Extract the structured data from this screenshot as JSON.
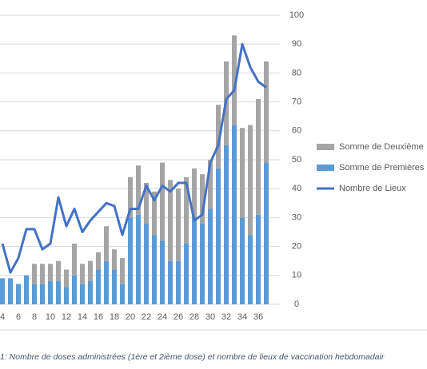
{
  "chart_data": {
    "type": "bar-line",
    "caption": "1: Nombre de doses administrées (1ère et 2ième dose) et nombre de lieux de vaccination hebdomadair",
    "x": [
      4,
      5,
      6,
      7,
      8,
      9,
      10,
      11,
      12,
      13,
      14,
      15,
      16,
      17,
      18,
      19,
      20,
      21,
      22,
      23,
      24,
      25,
      26,
      27,
      28,
      29,
      30,
      31,
      32,
      33,
      34,
      35,
      36,
      37
    ],
    "xlim": [
      3.7,
      38.7
    ],
    "xticks": [
      4,
      6,
      8,
      10,
      12,
      14,
      16,
      18,
      20,
      22,
      24,
      26,
      28,
      30,
      32,
      34,
      36
    ],
    "ylim": [
      0,
      100
    ],
    "yticks": [
      0,
      10,
      20,
      30,
      40,
      50,
      60,
      70,
      80,
      90,
      100
    ],
    "grid": true,
    "series": [
      {
        "name": "Somme de Premières",
        "color": "#5b9bd5",
        "kind": "bar",
        "values": [
          9,
          9,
          7,
          10,
          7,
          7,
          8,
          8,
          6,
          10,
          7,
          8,
          12,
          15,
          12,
          7,
          30,
          31,
          28,
          24,
          22,
          15,
          15,
          21,
          30,
          28,
          33,
          47,
          55,
          62,
          30,
          24,
          31,
          49
        ]
      },
      {
        "name": "Somme de Deuxième",
        "color": "#a5a5a5",
        "kind": "bar",
        "values": [
          0,
          0,
          0,
          0,
          7,
          7,
          6,
          7,
          6,
          11,
          7,
          7,
          6,
          12,
          7,
          9,
          14,
          17,
          14,
          15,
          27,
          28,
          25,
          23,
          17,
          17,
          17,
          22,
          29,
          31,
          31,
          38,
          40,
          35
        ]
      },
      {
        "name": "Nombre de Lieux",
        "color": "#4472c4",
        "kind": "line",
        "values": [
          21,
          11,
          16,
          26,
          26,
          19,
          21,
          37,
          27,
          33,
          25,
          29,
          32,
          35,
          34,
          24,
          33,
          33,
          41,
          36,
          41,
          39,
          42,
          42,
          29,
          31,
          49,
          55,
          71,
          74,
          90,
          82,
          77,
          75
        ]
      }
    ]
  }
}
